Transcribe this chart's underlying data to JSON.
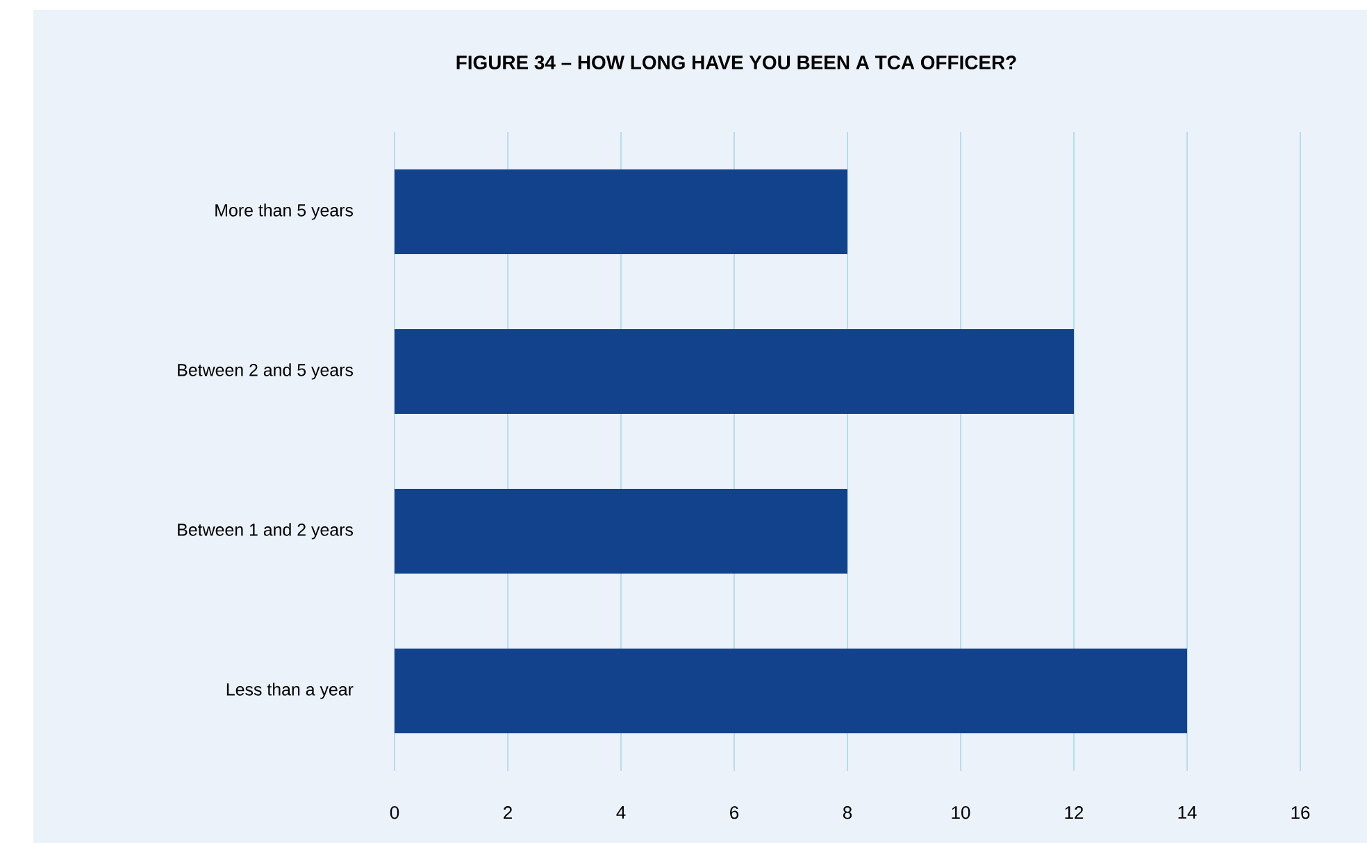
{
  "chart_data": {
    "type": "bar",
    "orientation": "horizontal",
    "title": "FIGURE 34 – HOW LONG HAVE YOU BEEN A TCA OFFICER?",
    "categories": [
      "More than 5 years",
      "Between 2 and 5 years",
      "Between 1 and 2 years",
      "Less than a year"
    ],
    "values": [
      8,
      12,
      8,
      14
    ],
    "color": "#13428c",
    "xlim": [
      0,
      16
    ],
    "xticks": [
      0,
      2,
      4,
      6,
      8,
      10,
      12,
      14,
      16
    ],
    "grid": "x"
  }
}
